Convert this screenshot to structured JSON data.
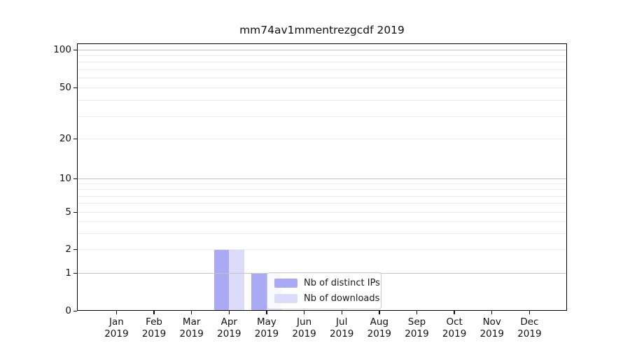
{
  "chart_data": {
    "type": "bar",
    "title": "mm74av1mmentrezgcdf 2019",
    "categories": [
      "Jan",
      "Feb",
      "Mar",
      "Apr",
      "May",
      "Jun",
      "Jul",
      "Aug",
      "Sep",
      "Oct",
      "Nov",
      "Dec"
    ],
    "year_label": "2019",
    "series": [
      {
        "name": "Nb of distinct IPs",
        "color": "#a9a9f4",
        "values": [
          0,
          0,
          0,
          2,
          1,
          0,
          0,
          0,
          0,
          0,
          0,
          0
        ]
      },
      {
        "name": "Nb of downloads",
        "color": "#dcdcfa",
        "values": [
          0,
          0,
          0,
          2,
          1,
          0,
          0,
          0,
          0,
          0,
          0,
          0
        ]
      }
    ],
    "xlabel": "",
    "ylabel": "",
    "yscale": "symlog",
    "ylim": [
      0,
      112
    ],
    "yticks": [
      0,
      1,
      2,
      5,
      10,
      20,
      50,
      100
    ],
    "grid": {
      "major_gridlines": [
        1,
        10,
        100
      ],
      "minor_gridlines": [
        2,
        3,
        4,
        5,
        6,
        7,
        8,
        9,
        20,
        30,
        40,
        50,
        60,
        70,
        80,
        90
      ]
    },
    "legend_position": "lower center, inside plot"
  },
  "colors": {
    "background": "#ffffff",
    "axis": "#000000",
    "major_grid": "#c3c3c3",
    "minor_grid": "#ebebeb",
    "legend_border": "#cccccc"
  }
}
